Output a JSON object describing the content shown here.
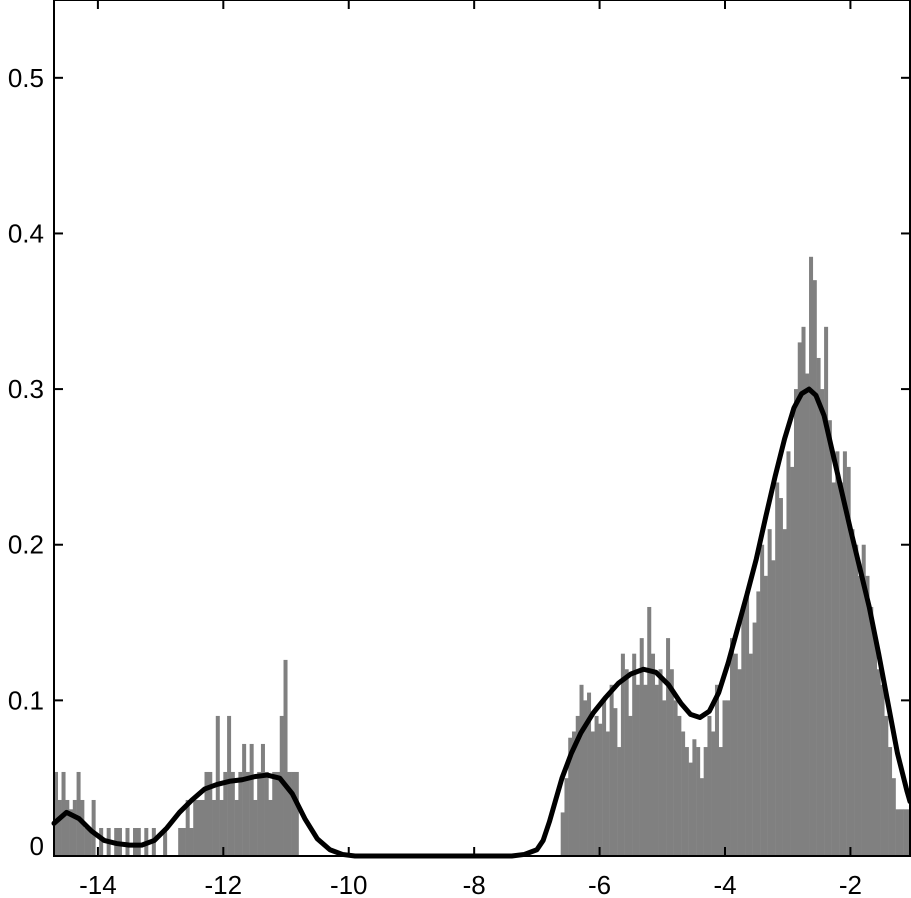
{
  "chart_data": {
    "type": "bar",
    "title": "",
    "xlabel": "",
    "ylabel": "",
    "xlim": [
      -14.7,
      -1.05
    ],
    "ylim": [
      0,
      0.55
    ],
    "grid": false,
    "legend": "none",
    "x_ticks": [
      -14,
      -12,
      -10,
      -8,
      -6,
      -4,
      -2
    ],
    "x_tick_labels": [
      "-14",
      "-12",
      "-10",
      "-8",
      "-6",
      "-4",
      "-2"
    ],
    "y_ticks": [
      0,
      0.1,
      0.2,
      0.3,
      0.4,
      0.5
    ],
    "y_tick_labels": [
      "0",
      "0.1",
      "0.2",
      "0.3",
      "0.4",
      "0.5"
    ],
    "bar_color": "#808080",
    "curve_color": "#000000",
    "bin_width": 0.0575,
    "bins_left": [
      [
        -14.7,
        0.054
      ],
      [
        -14.64,
        0.036
      ],
      [
        -14.58,
        0.054
      ],
      [
        -14.52,
        0.036
      ],
      [
        -14.46,
        0.03
      ],
      [
        -14.4,
        0.036
      ],
      [
        -14.34,
        0.054
      ],
      [
        -14.28,
        0.036
      ],
      [
        -14.22,
        0.018
      ],
      [
        -14.16,
        0.018
      ],
      [
        -14.1,
        0.036
      ],
      [
        -14.04,
        0.0
      ],
      [
        -13.98,
        0.018
      ],
      [
        -13.92,
        0.0
      ],
      [
        -13.86,
        0.018
      ],
      [
        -13.8,
        0.0
      ],
      [
        -13.74,
        0.018
      ],
      [
        -13.68,
        0.018
      ],
      [
        -13.62,
        0.0
      ],
      [
        -13.56,
        0.018
      ],
      [
        -13.5,
        0.0
      ],
      [
        -13.44,
        0.018
      ],
      [
        -13.38,
        0.018
      ],
      [
        -13.32,
        0.0
      ],
      [
        -13.26,
        0.018
      ],
      [
        -13.2,
        0.0
      ],
      [
        -13.14,
        0.018
      ],
      [
        -13.08,
        0.0
      ],
      [
        -13.02,
        0.0
      ],
      [
        -12.96,
        0.018
      ],
      [
        -12.9,
        0.0
      ],
      [
        -12.84,
        0.0
      ],
      [
        -12.78,
        0.0
      ],
      [
        -12.72,
        0.018
      ],
      [
        -12.66,
        0.018
      ],
      [
        -12.6,
        0.036
      ],
      [
        -12.54,
        0.018
      ],
      [
        -12.48,
        0.036
      ],
      [
        -12.42,
        0.036
      ],
      [
        -12.36,
        0.036
      ],
      [
        -12.3,
        0.054
      ],
      [
        -12.24,
        0.054
      ],
      [
        -12.18,
        0.036
      ],
      [
        -12.12,
        0.09
      ],
      [
        -12.06,
        0.036
      ],
      [
        -12.0,
        0.054
      ],
      [
        -11.94,
        0.09
      ],
      [
        -11.88,
        0.054
      ],
      [
        -11.82,
        0.036
      ],
      [
        -11.76,
        0.054
      ],
      [
        -11.7,
        0.072
      ],
      [
        -11.64,
        0.054
      ],
      [
        -11.58,
        0.072
      ],
      [
        -11.52,
        0.036
      ],
      [
        -11.46,
        0.054
      ],
      [
        -11.4,
        0.072
      ],
      [
        -11.34,
        0.054
      ],
      [
        -11.28,
        0.036
      ],
      [
        -11.22,
        0.054
      ],
      [
        -11.16,
        0.054
      ],
      [
        -11.1,
        0.09
      ],
      [
        -11.04,
        0.126
      ],
      [
        -10.98,
        0.054
      ],
      [
        -10.92,
        0.054
      ],
      [
        -10.86,
        0.054
      ]
    ],
    "bins_right": [
      [
        -6.62,
        0.028
      ],
      [
        -6.56,
        0.05
      ],
      [
        -6.5,
        0.076
      ],
      [
        -6.44,
        0.08
      ],
      [
        -6.38,
        0.09
      ],
      [
        -6.32,
        0.11
      ],
      [
        -6.26,
        0.1
      ],
      [
        -6.2,
        0.105
      ],
      [
        -6.14,
        0.08
      ],
      [
        -6.08,
        0.09
      ],
      [
        -6.02,
        0.085
      ],
      [
        -5.96,
        0.1
      ],
      [
        -5.9,
        0.08
      ],
      [
        -5.84,
        0.11
      ],
      [
        -5.78,
        0.095
      ],
      [
        -5.72,
        0.07
      ],
      [
        -5.66,
        0.13
      ],
      [
        -5.6,
        0.12
      ],
      [
        -5.54,
        0.09
      ],
      [
        -5.48,
        0.13
      ],
      [
        -5.42,
        0.11
      ],
      [
        -5.36,
        0.14
      ],
      [
        -5.3,
        0.11
      ],
      [
        -5.24,
        0.16
      ],
      [
        -5.18,
        0.13
      ],
      [
        -5.12,
        0.11
      ],
      [
        -5.06,
        0.12
      ],
      [
        -5.0,
        0.1
      ],
      [
        -4.94,
        0.14
      ],
      [
        -4.88,
        0.12
      ],
      [
        -4.82,
        0.1
      ],
      [
        -4.76,
        0.09
      ],
      [
        -4.7,
        0.08
      ],
      [
        -4.64,
        0.07
      ],
      [
        -4.58,
        0.06
      ],
      [
        -4.52,
        0.075
      ],
      [
        -4.46,
        0.07
      ],
      [
        -4.4,
        0.05
      ],
      [
        -4.34,
        0.07
      ],
      [
        -4.28,
        0.09
      ],
      [
        -4.22,
        0.08
      ],
      [
        -4.16,
        0.11
      ],
      [
        -4.1,
        0.07
      ],
      [
        -4.04,
        0.1
      ],
      [
        -3.98,
        0.1
      ],
      [
        -3.92,
        0.14
      ],
      [
        -3.86,
        0.13
      ],
      [
        -3.8,
        0.12
      ],
      [
        -3.74,
        0.16
      ],
      [
        -3.68,
        0.17
      ],
      [
        -3.62,
        0.13
      ],
      [
        -3.56,
        0.15
      ],
      [
        -3.5,
        0.17
      ],
      [
        -3.44,
        0.2
      ],
      [
        -3.38,
        0.18
      ],
      [
        -3.32,
        0.21
      ],
      [
        -3.26,
        0.19
      ],
      [
        -3.2,
        0.24
      ],
      [
        -3.14,
        0.23
      ],
      [
        -3.08,
        0.21
      ],
      [
        -3.02,
        0.26
      ],
      [
        -2.96,
        0.25
      ],
      [
        -2.9,
        0.3
      ],
      [
        -2.84,
        0.33
      ],
      [
        -2.78,
        0.34
      ],
      [
        -2.72,
        0.31
      ],
      [
        -2.66,
        0.385
      ],
      [
        -2.6,
        0.37
      ],
      [
        -2.54,
        0.32
      ],
      [
        -2.48,
        0.3
      ],
      [
        -2.42,
        0.34
      ],
      [
        -2.36,
        0.28
      ],
      [
        -2.3,
        0.24
      ],
      [
        -2.24,
        0.26
      ],
      [
        -2.18,
        0.24
      ],
      [
        -2.12,
        0.26
      ],
      [
        -2.06,
        0.25
      ],
      [
        -2.0,
        0.21
      ],
      [
        -1.94,
        0.2
      ],
      [
        -1.88,
        0.18
      ],
      [
        -1.82,
        0.2
      ],
      [
        -1.76,
        0.18
      ],
      [
        -1.7,
        0.16
      ],
      [
        -1.64,
        0.14
      ],
      [
        -1.58,
        0.12
      ],
      [
        -1.52,
        0.11
      ],
      [
        -1.46,
        0.09
      ],
      [
        -1.4,
        0.07
      ],
      [
        -1.34,
        0.05
      ],
      [
        -1.28,
        0.03
      ],
      [
        -1.22,
        0.03
      ],
      [
        -1.16,
        0.03
      ],
      [
        -1.1,
        0.03
      ]
    ],
    "density_curve": [
      [
        -14.7,
        0.021
      ],
      [
        -14.5,
        0.028
      ],
      [
        -14.3,
        0.024
      ],
      [
        -14.1,
        0.016
      ],
      [
        -13.9,
        0.01
      ],
      [
        -13.7,
        0.008
      ],
      [
        -13.5,
        0.007
      ],
      [
        -13.3,
        0.007
      ],
      [
        -13.1,
        0.01
      ],
      [
        -12.9,
        0.018
      ],
      [
        -12.7,
        0.028
      ],
      [
        -12.5,
        0.036
      ],
      [
        -12.3,
        0.043
      ],
      [
        -12.1,
        0.046
      ],
      [
        -11.9,
        0.048
      ],
      [
        -11.7,
        0.049
      ],
      [
        -11.5,
        0.051
      ],
      [
        -11.3,
        0.052
      ],
      [
        -11.1,
        0.05
      ],
      [
        -10.9,
        0.04
      ],
      [
        -10.7,
        0.024
      ],
      [
        -10.5,
        0.011
      ],
      [
        -10.3,
        0.004
      ],
      [
        -10.1,
        0.001
      ],
      [
        -9.9,
        0.0
      ],
      [
        -9.0,
        0.0
      ],
      [
        -8.0,
        0.0
      ],
      [
        -7.4,
        0.0
      ],
      [
        -7.2,
        0.001
      ],
      [
        -7.0,
        0.004
      ],
      [
        -6.9,
        0.01
      ],
      [
        -6.8,
        0.022
      ],
      [
        -6.7,
        0.036
      ],
      [
        -6.6,
        0.05
      ],
      [
        -6.45,
        0.066
      ],
      [
        -6.3,
        0.079
      ],
      [
        -6.1,
        0.092
      ],
      [
        -5.9,
        0.102
      ],
      [
        -5.7,
        0.111
      ],
      [
        -5.5,
        0.117
      ],
      [
        -5.3,
        0.12
      ],
      [
        -5.1,
        0.118
      ],
      [
        -4.9,
        0.11
      ],
      [
        -4.7,
        0.098
      ],
      [
        -4.55,
        0.091
      ],
      [
        -4.4,
        0.089
      ],
      [
        -4.25,
        0.093
      ],
      [
        -4.1,
        0.105
      ],
      [
        -3.95,
        0.124
      ],
      [
        -3.8,
        0.146
      ],
      [
        -3.65,
        0.168
      ],
      [
        -3.5,
        0.191
      ],
      [
        -3.35,
        0.218
      ],
      [
        -3.2,
        0.244
      ],
      [
        -3.05,
        0.268
      ],
      [
        -2.9,
        0.288
      ],
      [
        -2.78,
        0.297
      ],
      [
        -2.66,
        0.3
      ],
      [
        -2.55,
        0.296
      ],
      [
        -2.42,
        0.283
      ],
      [
        -2.3,
        0.262
      ],
      [
        -2.15,
        0.236
      ],
      [
        -2.0,
        0.21
      ],
      [
        -1.85,
        0.185
      ],
      [
        -1.7,
        0.16
      ],
      [
        -1.55,
        0.13
      ],
      [
        -1.4,
        0.098
      ],
      [
        -1.25,
        0.066
      ],
      [
        -1.1,
        0.042
      ],
      [
        -1.05,
        0.035
      ]
    ]
  }
}
